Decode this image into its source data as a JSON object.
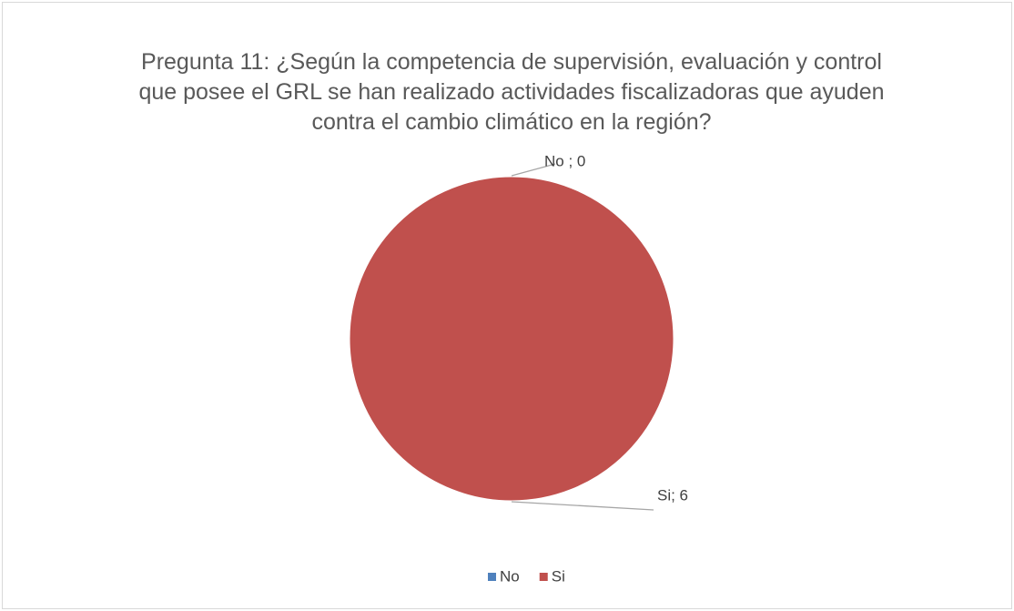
{
  "chart_data": {
    "type": "pie",
    "title": "Pregunta 11: ¿Según la competencia de supervisión, evaluación y control que posee el GRL se han realizado actividades fiscalizadoras que ayuden contra el cambio climático en la región?",
    "categories": [
      "No",
      "Si"
    ],
    "values": [
      0,
      6
    ],
    "value_labels": [
      "No ; 0",
      "Si; 6"
    ],
    "colors": [
      "#4f81bd",
      "#c0504d"
    ],
    "legend": "bottom"
  }
}
